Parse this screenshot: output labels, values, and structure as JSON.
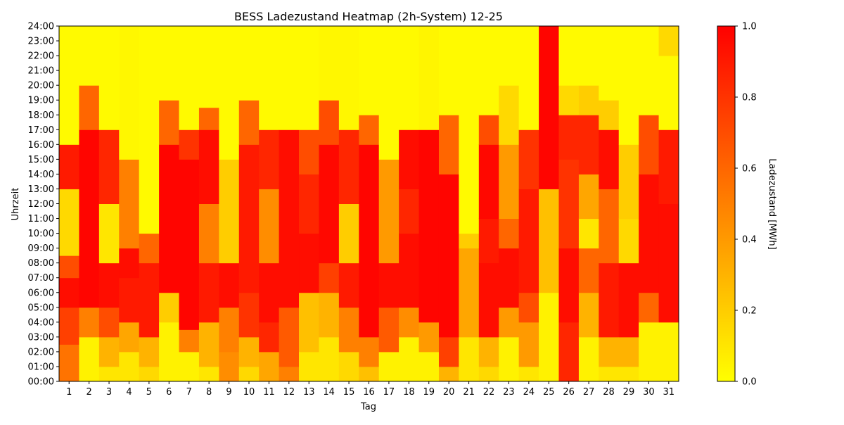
{
  "chart_data": {
    "type": "heatmap",
    "title": "BESS Ladezustand Heatmap (2h-System) 12-25",
    "xlabel": "Tag",
    "ylabel": "Uhrzeit",
    "colorbar_label": "Ladezustand [MWh]",
    "colorbar_ticks": [
      "0.0",
      "0.2",
      "0.4",
      "0.6",
      "0.8",
      "1.0"
    ],
    "color_range": [
      0.0,
      1.0
    ],
    "colormap": [
      "#ffff00",
      "#ffc000",
      "#ff8000",
      "#ff4000",
      "#ff0000"
    ],
    "grid": false,
    "x_categories": [
      "1",
      "2",
      "3",
      "4",
      "5",
      "6",
      "7",
      "8",
      "9",
      "10",
      "11",
      "12",
      "13",
      "14",
      "15",
      "16",
      "17",
      "18",
      "19",
      "20",
      "21",
      "22",
      "23",
      "24",
      "25",
      "26",
      "27",
      "28",
      "29",
      "30",
      "31"
    ],
    "y_ticks": [
      "00:00",
      "01:00",
      "02:00",
      "03:00",
      "04:00",
      "05:00",
      "06:00",
      "07:00",
      "08:00",
      "09:00",
      "10:00",
      "11:00",
      "12:00",
      "13:00",
      "14:00",
      "15:00",
      "16:00",
      "17:00",
      "18:00",
      "19:00",
      "20:00",
      "21:00",
      "22:00",
      "23:00",
      "24:00"
    ],
    "columns": [
      [
        [
          0,
          2.5,
          0.55
        ],
        [
          2.5,
          5,
          0.75
        ],
        [
          5,
          7,
          0.95
        ],
        [
          7,
          8.5,
          0.7
        ],
        [
          8.5,
          13,
          0.15
        ],
        [
          13,
          16,
          0.9
        ],
        [
          16,
          24,
          0.02
        ]
      ],
      [
        [
          0,
          3,
          0.05
        ],
        [
          3,
          5,
          0.5
        ],
        [
          5,
          17,
          0.98
        ],
        [
          17,
          20,
          0.6
        ],
        [
          20,
          24,
          0.02
        ]
      ],
      [
        [
          0,
          1,
          0.1
        ],
        [
          1,
          3,
          0.3
        ],
        [
          3,
          5,
          0.7
        ],
        [
          5,
          8,
          0.95
        ],
        [
          8,
          12,
          0.1
        ],
        [
          12,
          17,
          0.85
        ],
        [
          17,
          24,
          0.02
        ]
      ],
      [
        [
          0,
          2,
          0.1
        ],
        [
          2,
          4,
          0.35
        ],
        [
          4,
          7,
          0.9
        ],
        [
          7,
          9,
          0.95
        ],
        [
          9,
          15,
          0.5
        ],
        [
          15,
          24,
          0.03
        ]
      ],
      [
        [
          0,
          1,
          0.15
        ],
        [
          1,
          3,
          0.3
        ],
        [
          3,
          8,
          0.9
        ],
        [
          8,
          10,
          0.6
        ],
        [
          10,
          24,
          0.02
        ]
      ],
      [
        [
          0,
          4,
          0.05
        ],
        [
          4,
          6,
          0.2
        ],
        [
          6,
          16,
          0.98
        ],
        [
          16,
          19,
          0.6
        ],
        [
          19,
          24,
          0.02
        ]
      ],
      [
        [
          0,
          2,
          0.05
        ],
        [
          2,
          3.5,
          0.5
        ],
        [
          3.5,
          15,
          0.98
        ],
        [
          15,
          17,
          0.8
        ],
        [
          17,
          24,
          0.02
        ]
      ],
      [
        [
          0,
          1,
          0.1
        ],
        [
          1,
          4,
          0.3
        ],
        [
          4,
          8,
          0.9
        ],
        [
          8,
          12,
          0.5
        ],
        [
          12,
          17,
          0.95
        ],
        [
          17,
          18.5,
          0.6
        ],
        [
          18.5,
          24,
          0.02
        ]
      ],
      [
        [
          0,
          2,
          0.45
        ],
        [
          2,
          5,
          0.5
        ],
        [
          5,
          8,
          0.95
        ],
        [
          8,
          15,
          0.2
        ],
        [
          15,
          24,
          0.02
        ]
      ],
      [
        [
          0,
          1,
          0.15
        ],
        [
          1,
          3,
          0.3
        ],
        [
          3,
          6,
          0.8
        ],
        [
          6,
          16,
          0.9
        ],
        [
          16,
          19,
          0.6
        ],
        [
          19,
          24,
          0.02
        ]
      ],
      [
        [
          0,
          2,
          0.35
        ],
        [
          2,
          4,
          0.85
        ],
        [
          4,
          8,
          0.95
        ],
        [
          8,
          13,
          0.45
        ],
        [
          13,
          17,
          0.85
        ],
        [
          17,
          24,
          0.02
        ]
      ],
      [
        [
          0,
          1,
          0.5
        ],
        [
          1,
          5,
          0.65
        ],
        [
          5,
          17,
          0.95
        ],
        [
          17,
          24,
          0.02
        ]
      ],
      [
        [
          0,
          2,
          0.1
        ],
        [
          2,
          6,
          0.25
        ],
        [
          6,
          10,
          0.95
        ],
        [
          10,
          14,
          0.85
        ],
        [
          14,
          17,
          0.7
        ],
        [
          17,
          24,
          0.02
        ]
      ],
      [
        [
          0,
          3,
          0.1
        ],
        [
          3,
          6,
          0.3
        ],
        [
          6,
          8,
          0.75
        ],
        [
          8,
          16,
          0.97
        ],
        [
          16,
          19,
          0.7
        ],
        [
          19,
          24,
          0.03
        ]
      ],
      [
        [
          0,
          2,
          0.15
        ],
        [
          2,
          5,
          0.5
        ],
        [
          5,
          8,
          0.9
        ],
        [
          8,
          12,
          0.2
        ],
        [
          12,
          17,
          0.85
        ],
        [
          17,
          24,
          0.03
        ]
      ],
      [
        [
          0,
          1,
          0.25
        ],
        [
          1,
          3,
          0.5
        ],
        [
          3,
          16,
          0.98
        ],
        [
          16,
          18,
          0.6
        ],
        [
          18,
          24,
          0.02
        ]
      ],
      [
        [
          0,
          2,
          0.05
        ],
        [
          2,
          5,
          0.65
        ],
        [
          5,
          8,
          0.95
        ],
        [
          8,
          15,
          0.4
        ],
        [
          15,
          24,
          0.02
        ]
      ],
      [
        [
          0,
          3,
          0.05
        ],
        [
          3,
          5,
          0.45
        ],
        [
          5,
          10,
          0.95
        ],
        [
          10,
          13,
          0.85
        ],
        [
          13,
          17,
          0.95
        ],
        [
          17,
          24,
          0.02
        ]
      ],
      [
        [
          0,
          2,
          0.05
        ],
        [
          2,
          4,
          0.4
        ],
        [
          4,
          17,
          0.98
        ],
        [
          17,
          24,
          0.04
        ]
      ],
      [
        [
          0,
          1,
          0.3
        ],
        [
          1,
          3,
          0.75
        ],
        [
          3,
          14,
          0.98
        ],
        [
          14,
          18,
          0.6
        ],
        [
          18,
          24,
          0.02
        ]
      ],
      [
        [
          0,
          3,
          0.1
        ],
        [
          3,
          9,
          0.35
        ],
        [
          9,
          10,
          0.2
        ],
        [
          10,
          24,
          0.02
        ]
      ],
      [
        [
          0,
          1,
          0.15
        ],
        [
          1,
          3,
          0.3
        ],
        [
          3,
          8,
          0.95
        ],
        [
          8,
          11,
          0.9
        ],
        [
          11,
          16,
          0.97
        ],
        [
          16,
          18,
          0.7
        ],
        [
          18,
          24,
          0.02
        ]
      ],
      [
        [
          0,
          3,
          0.05
        ],
        [
          3,
          5,
          0.4
        ],
        [
          5,
          9,
          0.95
        ],
        [
          9,
          11,
          0.6
        ],
        [
          11,
          16,
          0.4
        ],
        [
          16,
          20,
          0.15
        ],
        [
          20,
          24,
          0.02
        ]
      ],
      [
        [
          0,
          1,
          0.1
        ],
        [
          1,
          4,
          0.4
        ],
        [
          4,
          6,
          0.7
        ],
        [
          6,
          13,
          0.9
        ],
        [
          13,
          17,
          0.8
        ],
        [
          17,
          24,
          0.02
        ]
      ],
      [
        [
          0,
          6,
          0.05
        ],
        [
          6,
          10,
          0.25
        ],
        [
          10,
          13,
          0.25
        ],
        [
          13,
          24,
          0.98
        ]
      ],
      [
        [
          0,
          4,
          0.85
        ],
        [
          4,
          9,
          0.95
        ],
        [
          9,
          15,
          0.8
        ],
        [
          15,
          18,
          0.85
        ],
        [
          18,
          20,
          0.15
        ],
        [
          20,
          24,
          0.02
        ]
      ],
      [
        [
          0,
          3,
          0.05
        ],
        [
          3,
          6,
          0.3
        ],
        [
          6,
          9,
          0.6
        ],
        [
          9,
          11,
          0.1
        ],
        [
          11,
          14,
          0.35
        ],
        [
          14,
          18,
          0.85
        ],
        [
          18,
          20,
          0.2
        ],
        [
          20,
          24,
          0.02
        ]
      ],
      [
        [
          0,
          1,
          0.1
        ],
        [
          1,
          3,
          0.3
        ],
        [
          3,
          8,
          0.9
        ],
        [
          8,
          13,
          0.6
        ],
        [
          13,
          17,
          0.95
        ],
        [
          17,
          19,
          0.2
        ],
        [
          19,
          24,
          0.02
        ]
      ],
      [
        [
          0,
          1,
          0.1
        ],
        [
          1,
          3,
          0.3
        ],
        [
          3,
          8,
          0.95
        ],
        [
          8,
          11,
          0.15
        ],
        [
          11,
          16,
          0.2
        ],
        [
          16,
          24,
          0.02
        ]
      ],
      [
        [
          0,
          4,
          0.05
        ],
        [
          4,
          6,
          0.6
        ],
        [
          6,
          14,
          0.95
        ],
        [
          14,
          18,
          0.7
        ],
        [
          18,
          24,
          0.02
        ]
      ],
      [
        [
          0,
          4,
          0.05
        ],
        [
          4,
          12,
          0.95
        ],
        [
          12,
          17,
          0.9
        ],
        [
          17,
          22,
          0.02
        ],
        [
          22,
          24,
          0.15
        ]
      ]
    ]
  }
}
